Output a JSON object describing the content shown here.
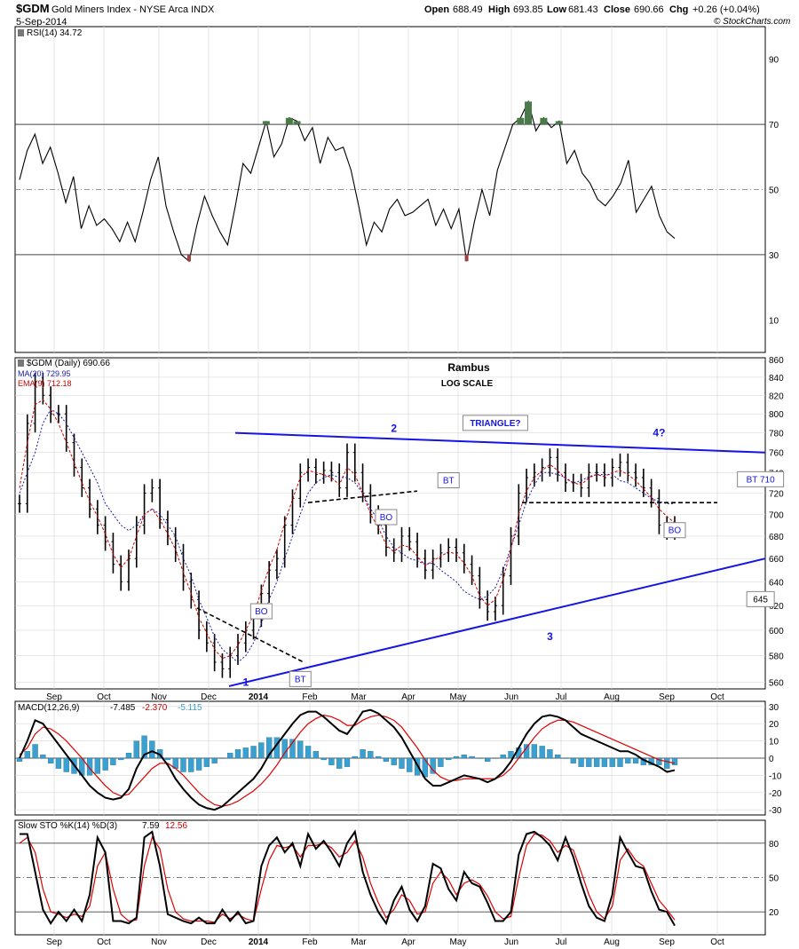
{
  "header": {
    "symbol": "$GDM",
    "name": "Gold Miners Index - NYSE Arca INDX",
    "date": "5-Sep-2014",
    "branding": "© StockCharts.com",
    "open_label": "Open",
    "open": "688.49",
    "high_label": "High",
    "high": "693.85",
    "low_label": "Low",
    "low": "681.43",
    "close_label": "Close",
    "close": "690.66",
    "chg_label": "Chg",
    "chg": "+0.26 (+0.04%)"
  },
  "colors": {
    "background": "#ffffff",
    "grid": "#d9d9d9",
    "price_bar": "#000000",
    "ema_line": "#cc0000",
    "ma_line": "#1a1aa8",
    "trend_line": "#1414e6",
    "macd_hist": "#3aa0d0",
    "rsi_fill": "#4a7a4a"
  },
  "months_axis": [
    "Sep",
    "Oct",
    "Nov",
    "Dec",
    "2014",
    "Feb",
    "Mar",
    "Apr",
    "May",
    "Jun",
    "Jul",
    "Aug",
    "Sep",
    "Oct"
  ],
  "chart_data": [
    {
      "type": "line",
      "panel": "rsi",
      "label": "RSI(14) 34.72",
      "ylim": [
        0,
        100
      ],
      "yticks": [
        90,
        70,
        50,
        30,
        10
      ],
      "reference_lines": [
        70,
        50,
        30
      ],
      "values": [
        53,
        62,
        67,
        58,
        63,
        55,
        46,
        54,
        38,
        45,
        39,
        41,
        38,
        34,
        40,
        34,
        43,
        53,
        60,
        45,
        37,
        30,
        28,
        39,
        48,
        42,
        37,
        33,
        45,
        58,
        55,
        63,
        71,
        60,
        64,
        72,
        71,
        65,
        69,
        58,
        66,
        62,
        63,
        56,
        45,
        33,
        40,
        37,
        44,
        47,
        42,
        43,
        45,
        47,
        39,
        44,
        38,
        44,
        28,
        40,
        50,
        42,
        56,
        63,
        70,
        72,
        77,
        68,
        72,
        69,
        71,
        58,
        62,
        55,
        52,
        47,
        45,
        48,
        52,
        59,
        43,
        47,
        51,
        42,
        37,
        35
      ]
    },
    {
      "type": "bar",
      "panel": "price",
      "label": "$GDM (Daily) 690.66",
      "ma_label": "MA(20) 729.95",
      "ema_label": "EMA(9) 712.18",
      "scale": "log",
      "title": "Rambus",
      "subtitle": "LOG SCALE",
      "ylim": [
        555,
        862
      ],
      "yticks": [
        860,
        840,
        820,
        800,
        780,
        760,
        740,
        720,
        700,
        680,
        660,
        640,
        620,
        600,
        580,
        560
      ],
      "close_values": [
        710,
        790,
        835,
        820,
        800,
        800,
        770,
        745,
        725,
        705,
        690,
        675,
        655,
        640,
        660,
        690,
        720,
        725,
        695,
        680,
        665,
        640,
        625,
        600,
        590,
        575,
        570,
        580,
        590,
        600,
        610,
        630,
        650,
        660,
        690,
        715,
        740,
        745,
        738,
        742,
        740,
        725,
        760,
        740,
        720,
        700,
        690,
        670,
        665,
        680,
        675,
        660,
        650,
        660,
        665,
        670,
        665,
        655,
        645,
        625,
        615,
        620,
        645,
        680,
        720,
        735,
        740,
        745,
        755,
        740,
        730,
        730,
        725,
        740,
        740,
        735,
        745,
        750,
        740,
        735,
        725,
        715,
        690,
        685,
        690
      ],
      "ma20_values": [
        720,
        740,
        760,
        790,
        805,
        800,
        790,
        775,
        760,
        745,
        730,
        710,
        700,
        690,
        685,
        690,
        700,
        705,
        700,
        690,
        680,
        660,
        645,
        625,
        610,
        595,
        585,
        580,
        575,
        580,
        590,
        605,
        625,
        640,
        660,
        680,
        700,
        720,
        730,
        735,
        738,
        735,
        735,
        730,
        720,
        705,
        695,
        680,
        670,
        665,
        660,
        658,
        655,
        656,
        650,
        645,
        640,
        632,
        628,
        625,
        628,
        635,
        650,
        670,
        690,
        712,
        728,
        740,
        740,
        738,
        735,
        730,
        732,
        736,
        738,
        738,
        738,
        732,
        730,
        725,
        720,
        715,
        712,
        710,
        710
      ],
      "ema9_values": [
        725,
        770,
        810,
        815,
        805,
        790,
        770,
        750,
        730,
        712,
        698,
        682,
        664,
        652,
        660,
        680,
        700,
        705,
        695,
        682,
        668,
        648,
        630,
        610,
        598,
        585,
        578,
        580,
        588,
        600,
        612,
        632,
        652,
        668,
        692,
        714,
        735,
        742,
        740,
        738,
        735,
        728,
        745,
        738,
        720,
        700,
        688,
        672,
        666,
        672,
        670,
        662,
        654,
        658,
        662,
        666,
        664,
        656,
        645,
        628,
        620,
        625,
        642,
        668,
        700,
        722,
        735,
        742,
        748,
        742,
        734,
        730,
        728,
        735,
        738,
        736,
        740,
        742,
        738,
        732,
        724,
        716,
        705,
        698,
        692
      ],
      "annotations": [
        {
          "text": "1",
          "x_index": 29,
          "y_price": 560
        },
        {
          "text": "2",
          "x_index": 48,
          "y_price": 785
        },
        {
          "text": "3",
          "x_index": 68,
          "y_price": 595
        },
        {
          "text": "4?",
          "x_index": 82,
          "y_price": 780
        },
        {
          "text": "TRIANGLE?",
          "x_index": 61,
          "y_price": 790
        },
        {
          "text": "BO",
          "x_index": 31,
          "y_price": 615
        },
        {
          "text": "BT",
          "x_index": 36,
          "y_price": 562
        },
        {
          "text": "BT",
          "x_index": 55,
          "y_price": 732
        },
        {
          "text": "BO",
          "x_index": 47,
          "y_price": 697
        },
        {
          "text": "BO",
          "x_index": 84,
          "y_price": 685
        },
        {
          "text": "BT 710",
          "x_index": 95,
          "y_price": 733
        },
        {
          "text": "645",
          "x_index": 95,
          "y_price": 625
        }
      ]
    },
    {
      "type": "line",
      "panel": "macd",
      "label_prefix": "MACD(12,26,9)",
      "label_macd": "-7.485",
      "label_signal": "-2.370",
      "label_hist": "-5.115",
      "ylim": [
        -33,
        33
      ],
      "yticks": [
        30,
        20,
        10,
        0,
        -10,
        -20,
        -30
      ],
      "macd": [
        0,
        10,
        22,
        20,
        14,
        8,
        2,
        -4,
        -10,
        -16,
        -20,
        -23,
        -24,
        -23,
        -18,
        -6,
        2,
        4,
        2,
        -4,
        -12,
        -18,
        -23,
        -27,
        -29,
        -30,
        -28,
        -24,
        -20,
        -16,
        -12,
        -6,
        2,
        8,
        14,
        20,
        25,
        27,
        27,
        24,
        20,
        16,
        14,
        20,
        27,
        28,
        26,
        22,
        18,
        12,
        4,
        -4,
        -12,
        -16,
        -16,
        -14,
        -12,
        -10,
        -11,
        -12,
        -14,
        -12,
        -8,
        -2,
        6,
        14,
        20,
        24,
        25,
        24,
        22,
        18,
        14,
        12,
        10,
        8,
        6,
        4,
        4,
        2,
        -1,
        -3,
        -5,
        -8,
        -7
      ],
      "signal": [
        2,
        6,
        14,
        18,
        17,
        14,
        10,
        5,
        0,
        -6,
        -11,
        -16,
        -20,
        -22,
        -21,
        -16,
        -11,
        -6,
        -3,
        -3,
        -6,
        -10,
        -15,
        -20,
        -24,
        -27,
        -28,
        -27,
        -25,
        -22,
        -19,
        -15,
        -10,
        -4,
        3,
        9,
        15,
        20,
        23,
        25,
        24,
        22,
        19,
        19,
        22,
        24,
        25,
        24,
        22,
        18,
        12,
        6,
        -1,
        -7,
        -11,
        -13,
        -13,
        -12,
        -12,
        -12,
        -12,
        -12,
        -10,
        -6,
        0,
        6,
        12,
        17,
        20,
        22,
        22,
        21,
        19,
        17,
        15,
        13,
        11,
        9,
        7,
        5,
        3,
        1,
        -1,
        -2,
        -3
      ],
      "hist": [
        -2,
        4,
        8,
        2,
        -3,
        -6,
        -8,
        -9,
        -10,
        -10,
        -9,
        -7,
        -4,
        -1,
        3,
        10,
        13,
        10,
        5,
        -1,
        -6,
        -8,
        -8,
        -7,
        -5,
        -3,
        0,
        3,
        5,
        6,
        7,
        9,
        12,
        12,
        11,
        11,
        10,
        7,
        4,
        -1,
        -4,
        -6,
        -5,
        1,
        5,
        4,
        1,
        -2,
        -4,
        -6,
        -8,
        -10,
        -11,
        -9,
        -5,
        -1,
        1,
        2,
        1,
        0,
        -2,
        0,
        2,
        4,
        6,
        8,
        8,
        7,
        5,
        2,
        0,
        -3,
        -5,
        -5,
        -5,
        -5,
        -5,
        -5,
        -3,
        -3,
        -4,
        -4,
        -4,
        -6,
        -4
      ]
    },
    {
      "type": "line",
      "panel": "stochastic",
      "label_prefix": "Slow STO %K(14) %D(3)",
      "label_k": "7.59",
      "label_d": "12.56",
      "ylim": [
        0,
        100
      ],
      "yticks": [
        80,
        50,
        20
      ],
      "reference_lines": [
        80,
        50,
        20
      ],
      "k": [
        88,
        88,
        55,
        22,
        10,
        20,
        12,
        22,
        12,
        35,
        85,
        72,
        12,
        12,
        10,
        15,
        85,
        90,
        60,
        18,
        15,
        12,
        10,
        15,
        10,
        10,
        22,
        12,
        20,
        10,
        12,
        60,
        78,
        85,
        72,
        80,
        60,
        88,
        75,
        82,
        72,
        60,
        80,
        90,
        55,
        35,
        20,
        10,
        30,
        42,
        22,
        12,
        25,
        62,
        58,
        40,
        30,
        55,
        45,
        42,
        28,
        12,
        12,
        20,
        70,
        88,
        90,
        85,
        78,
        65,
        85,
        68,
        45,
        25,
        15,
        12,
        35,
        85,
        72,
        60,
        58,
        38,
        22,
        20,
        8
      ],
      "d": [
        80,
        85,
        72,
        40,
        20,
        18,
        15,
        18,
        16,
        25,
        60,
        72,
        40,
        18,
        12,
        13,
        60,
        85,
        75,
        40,
        20,
        14,
        12,
        12,
        12,
        11,
        18,
        14,
        18,
        14,
        12,
        40,
        65,
        78,
        76,
        78,
        68,
        78,
        78,
        80,
        76,
        68,
        72,
        82,
        68,
        45,
        28,
        15,
        22,
        35,
        30,
        18,
        20,
        45,
        55,
        48,
        35,
        45,
        48,
        44,
        34,
        20,
        14,
        16,
        50,
        78,
        88,
        87,
        82,
        72,
        78,
        74,
        55,
        35,
        20,
        14,
        25,
        65,
        75,
        65,
        60,
        45,
        30,
        22,
        13
      ]
    }
  ]
}
